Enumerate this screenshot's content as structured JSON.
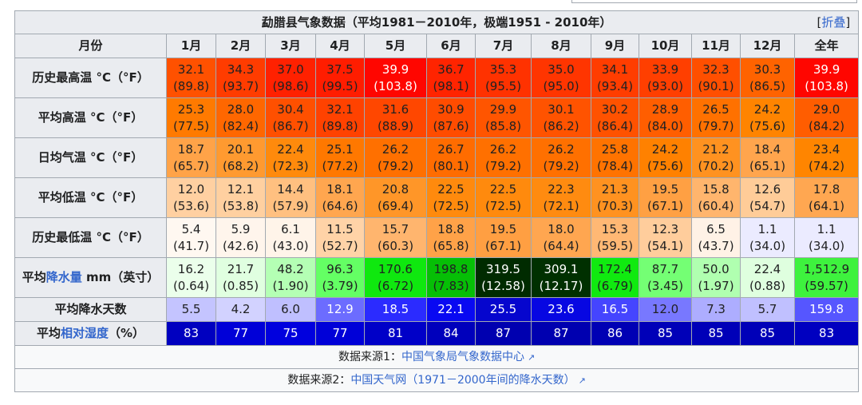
{
  "table": {
    "title": "勐腊县气象数据（平均1981－2010年，极端1951 - 2010年）",
    "collapse_toggle": {
      "bracket_open": "[",
      "label": "折叠",
      "bracket_close": "]"
    },
    "header_label": "月份",
    "months": [
      "1月",
      "2月",
      "3月",
      "4月",
      "5月",
      "6月",
      "7月",
      "8月",
      "9月",
      "10月",
      "11月",
      "12月",
      "全年"
    ],
    "rows": [
      {
        "label_parts": [
          {
            "text": "历史最高温 °C（°F）",
            "link": false
          }
        ],
        "cells": [
          {
            "c": "32.1",
            "f": "(89.8)",
            "bg": "#ff5100",
            "fg": "#202122"
          },
          {
            "c": "34.3",
            "f": "(93.7)",
            "bg": "#ff3c00",
            "fg": "#202122"
          },
          {
            "c": "37.0",
            "f": "(98.6)",
            "bg": "#ff2100",
            "fg": "#202122"
          },
          {
            "c": "37.5",
            "f": "(99.5)",
            "bg": "#ff1d00",
            "fg": "#202122"
          },
          {
            "c": "39.9",
            "f": "(103.8)",
            "bg": "#ff0600",
            "fg": "#ffffff"
          },
          {
            "c": "36.7",
            "f": "(98.1)",
            "bg": "#ff2400",
            "fg": "#202122"
          },
          {
            "c": "35.3",
            "f": "(95.5)",
            "bg": "#ff3200",
            "fg": "#202122"
          },
          {
            "c": "35.0",
            "f": "(95.0)",
            "bg": "#ff3500",
            "fg": "#202122"
          },
          {
            "c": "34.1",
            "f": "(93.4)",
            "bg": "#ff3d00",
            "fg": "#202122"
          },
          {
            "c": "33.9",
            "f": "(93.0)",
            "bg": "#ff3f00",
            "fg": "#202122"
          },
          {
            "c": "32.3",
            "f": "(90.1)",
            "bg": "#ff4f00",
            "fg": "#202122"
          },
          {
            "c": "30.3",
            "f": "(86.5)",
            "bg": "#ff6300",
            "fg": "#202122"
          },
          {
            "c": "39.9",
            "f": "(103.8)",
            "bg": "#ff0600",
            "fg": "#ffffff"
          }
        ]
      },
      {
        "label_parts": [
          {
            "text": "平均高温 °C（°F）",
            "link": false
          }
        ],
        "cells": [
          {
            "c": "25.3",
            "f": "(77.5)",
            "bg": "#ff7a00",
            "fg": "#202122"
          },
          {
            "c": "28.0",
            "f": "(82.4)",
            "bg": "#ff6700",
            "fg": "#202122"
          },
          {
            "c": "30.4",
            "f": "(86.7)",
            "bg": "#ff5000",
            "fg": "#202122"
          },
          {
            "c": "32.1",
            "f": "(89.8)",
            "bg": "#ff4200",
            "fg": "#202122"
          },
          {
            "c": "31.6",
            "f": "(88.9)",
            "bg": "#ff4700",
            "fg": "#202122"
          },
          {
            "c": "30.9",
            "f": "(87.6)",
            "bg": "#ff4c00",
            "fg": "#202122"
          },
          {
            "c": "29.9",
            "f": "(85.8)",
            "bg": "#ff5500",
            "fg": "#202122"
          },
          {
            "c": "30.1",
            "f": "(86.2)",
            "bg": "#ff5300",
            "fg": "#202122"
          },
          {
            "c": "30.2",
            "f": "(86.4)",
            "bg": "#ff5200",
            "fg": "#202122"
          },
          {
            "c": "28.9",
            "f": "(84.0)",
            "bg": "#ff5e00",
            "fg": "#202122"
          },
          {
            "c": "26.5",
            "f": "(79.7)",
            "bg": "#ff7100",
            "fg": "#202122"
          },
          {
            "c": "24.2",
            "f": "(75.6)",
            "bg": "#ff8400",
            "fg": "#202122"
          },
          {
            "c": "29.0",
            "f": "(84.2)",
            "bg": "#ff5d00",
            "fg": "#202122"
          }
        ]
      },
      {
        "label_parts": [
          {
            "text": "日均气温 °C（°F）",
            "link": false
          }
        ],
        "cells": [
          {
            "c": "18.7",
            "f": "(65.7)",
            "bg": "#ffa348",
            "fg": "#202122"
          },
          {
            "c": "20.1",
            "f": "(68.2)",
            "bg": "#ff9a30",
            "fg": "#202122"
          },
          {
            "c": "22.4",
            "f": "(72.3)",
            "bg": "#ff8a0c",
            "fg": "#202122"
          },
          {
            "c": "25.1",
            "f": "(77.2)",
            "bg": "#ff7800",
            "fg": "#202122"
          },
          {
            "c": "26.2",
            "f": "(79.2)",
            "bg": "#ff7000",
            "fg": "#202122"
          },
          {
            "c": "26.7",
            "f": "(80.1)",
            "bg": "#ff6c00",
            "fg": "#202122"
          },
          {
            "c": "26.2",
            "f": "(79.2)",
            "bg": "#ff7000",
            "fg": "#202122"
          },
          {
            "c": "26.2",
            "f": "(79.2)",
            "bg": "#ff7000",
            "fg": "#202122"
          },
          {
            "c": "25.8",
            "f": "(78.4)",
            "bg": "#ff7300",
            "fg": "#202122"
          },
          {
            "c": "24.2",
            "f": "(75.6)",
            "bg": "#ff8100",
            "fg": "#202122"
          },
          {
            "c": "21.2",
            "f": "(70.2)",
            "bg": "#ff9220",
            "fg": "#202122"
          },
          {
            "c": "18.4",
            "f": "(65.1)",
            "bg": "#ffa54d",
            "fg": "#202122"
          },
          {
            "c": "23.4",
            "f": "(74.2)",
            "bg": "#ff8500",
            "fg": "#202122"
          }
        ]
      },
      {
        "label_parts": [
          {
            "text": "平均低温 °C（°F）",
            "link": false
          }
        ],
        "cells": [
          {
            "c": "12.0",
            "f": "(53.6)",
            "bg": "#ffd0a1",
            "fg": "#202122"
          },
          {
            "c": "12.1",
            "f": "(53.8)",
            "bg": "#ffd0a0",
            "fg": "#202122"
          },
          {
            "c": "14.4",
            "f": "(57.9)",
            "bg": "#ffc080",
            "fg": "#202122"
          },
          {
            "c": "18.1",
            "f": "(64.6)",
            "bg": "#ffa64f",
            "fg": "#202122"
          },
          {
            "c": "20.8",
            "f": "(69.4)",
            "bg": "#ff9628",
            "fg": "#202122"
          },
          {
            "c": "22.5",
            "f": "(72.5)",
            "bg": "#ff8a0d",
            "fg": "#202122"
          },
          {
            "c": "22.5",
            "f": "(72.5)",
            "bg": "#ff8a0d",
            "fg": "#202122"
          },
          {
            "c": "22.3",
            "f": "(72.1)",
            "bg": "#ff8b10",
            "fg": "#202122"
          },
          {
            "c": "21.3",
            "f": "(70.3)",
            "bg": "#ff9220",
            "fg": "#202122"
          },
          {
            "c": "19.5",
            "f": "(67.1)",
            "bg": "#ffa043",
            "fg": "#202122"
          },
          {
            "c": "15.8",
            "f": "(60.4)",
            "bg": "#ffb56d",
            "fg": "#202122"
          },
          {
            "c": "12.6",
            "f": "(54.7)",
            "bg": "#ffcc98",
            "fg": "#202122"
          },
          {
            "c": "17.8",
            "f": "(64.1)",
            "bg": "#ffa751",
            "fg": "#202122"
          }
        ]
      },
      {
        "label_parts": [
          {
            "text": "历史最低温 °C（°F）",
            "link": false
          }
        ],
        "cells": [
          {
            "c": "5.4",
            "f": "(41.7)",
            "bg": "#fff8f1",
            "fg": "#202122"
          },
          {
            "c": "5.9",
            "f": "(42.6)",
            "bg": "#fff5ec",
            "fg": "#202122"
          },
          {
            "c": "6.1",
            "f": "(43.0)",
            "bg": "#fff4e9",
            "fg": "#202122"
          },
          {
            "c": "11.5",
            "f": "(52.7)",
            "bg": "#ffd3a7",
            "fg": "#202122"
          },
          {
            "c": "15.7",
            "f": "(60.3)",
            "bg": "#ffb56e",
            "fg": "#202122"
          },
          {
            "c": "18.8",
            "f": "(65.8)",
            "bg": "#ffa248",
            "fg": "#202122"
          },
          {
            "c": "19.5",
            "f": "(67.1)",
            "bg": "#ff9f42",
            "fg": "#202122"
          },
          {
            "c": "18.0",
            "f": "(64.4)",
            "bg": "#ffa650",
            "fg": "#202122"
          },
          {
            "c": "15.3",
            "f": "(59.5)",
            "bg": "#ffb874",
            "fg": "#202122"
          },
          {
            "c": "12.3",
            "f": "(54.1)",
            "bg": "#ffcd9c",
            "fg": "#202122"
          },
          {
            "c": "6.5",
            "f": "(43.7)",
            "bg": "#fff2e6",
            "fg": "#202122"
          },
          {
            "c": "1.1",
            "f": "(34.0)",
            "bg": "#ebebff",
            "fg": "#202122"
          },
          {
            "c": "1.1",
            "f": "(34.0)",
            "bg": "#ebebff",
            "fg": "#202122"
          }
        ]
      },
      {
        "label_parts": [
          {
            "text": "平均",
            "link": false
          },
          {
            "text": "降水量",
            "link": true
          },
          {
            "text": " mm（英寸）",
            "link": false
          }
        ],
        "cells": [
          {
            "c": "16.2",
            "f": "(0.64)",
            "bg": "#ebffeb",
            "fg": "#202122"
          },
          {
            "c": "21.7",
            "f": "(0.85)",
            "bg": "#e0ffe0",
            "fg": "#202122"
          },
          {
            "c": "48.2",
            "f": "(1.90)",
            "bg": "#b4ffb4",
            "fg": "#202122"
          },
          {
            "c": "96.3",
            "f": "(3.79)",
            "bg": "#64ff64",
            "fg": "#202122"
          },
          {
            "c": "170.6",
            "f": "(6.72)",
            "bg": "#0fe80f",
            "fg": "#202122"
          },
          {
            "c": "198.8",
            "f": "(7.83)",
            "bg": "#06bf06",
            "fg": "#202122"
          },
          {
            "c": "319.5",
            "f": "(12.58)",
            "bg": "#002b00",
            "fg": "#ffffff"
          },
          {
            "c": "309.1",
            "f": "(12.17)",
            "bg": "#003000",
            "fg": "#ffffff"
          },
          {
            "c": "172.4",
            "f": "(6.79)",
            "bg": "#10ea10",
            "fg": "#202122"
          },
          {
            "c": "87.7",
            "f": "(3.45)",
            "bg": "#74ff74",
            "fg": "#202122"
          },
          {
            "c": "50.0",
            "f": "(1.97)",
            "bg": "#b0ffb0",
            "fg": "#202122"
          },
          {
            "c": "22.4",
            "f": "(0.88)",
            "bg": "#dfffdf",
            "fg": "#202122"
          },
          {
            "c": "1,512.9",
            "f": "(59.57)",
            "bg": "#3ef23e",
            "fg": "#202122"
          }
        ]
      },
      {
        "label_parts": [
          {
            "text": "平均降水天数",
            "link": false
          }
        ],
        "cells": [
          {
            "c": "5.5",
            "bg": "#c4c4ff",
            "fg": "#202122"
          },
          {
            "c": "4.2",
            "bg": "#d2d2ff",
            "fg": "#202122"
          },
          {
            "c": "6.0",
            "bg": "#bfbfff",
            "fg": "#202122"
          },
          {
            "c": "12.9",
            "bg": "#6c6cff",
            "fg": "#ffffff"
          },
          {
            "c": "18.5",
            "bg": "#2b2bff",
            "fg": "#ffffff"
          },
          {
            "c": "22.1",
            "bg": "#0909f2",
            "fg": "#ffffff"
          },
          {
            "c": "25.5",
            "bg": "#0606ce",
            "fg": "#ffffff"
          },
          {
            "c": "23.6",
            "bg": "#0707e2",
            "fg": "#ffffff"
          },
          {
            "c": "16.5",
            "bg": "#4545ff",
            "fg": "#ffffff"
          },
          {
            "c": "12.0",
            "bg": "#7878ff",
            "fg": "#202122"
          },
          {
            "c": "7.3",
            "bg": "#adadff",
            "fg": "#202122"
          },
          {
            "c": "5.7",
            "bg": "#c0c0ff",
            "fg": "#202122"
          },
          {
            "c": "159.8",
            "bg": "#5656ff",
            "fg": "#ffffff"
          }
        ]
      },
      {
        "label_parts": [
          {
            "text": "平均",
            "link": false
          },
          {
            "text": "相对湿度",
            "link": true
          },
          {
            "text": "（%）",
            "link": false
          }
        ],
        "cells": [
          {
            "c": "83",
            "bg": "#0000c0",
            "fg": "#ffffff"
          },
          {
            "c": "77",
            "bg": "#0000d8",
            "fg": "#ffffff"
          },
          {
            "c": "75",
            "bg": "#0000de",
            "fg": "#ffffff"
          },
          {
            "c": "77",
            "bg": "#0000d8",
            "fg": "#ffffff"
          },
          {
            "c": "81",
            "bg": "#0000c8",
            "fg": "#ffffff"
          },
          {
            "c": "84",
            "bg": "#0000bc",
            "fg": "#ffffff"
          },
          {
            "c": "87",
            "bg": "#0000b0",
            "fg": "#ffffff"
          },
          {
            "c": "87",
            "bg": "#0000b0",
            "fg": "#ffffff"
          },
          {
            "c": "86",
            "bg": "#0000b4",
            "fg": "#ffffff"
          },
          {
            "c": "85",
            "bg": "#0000b8",
            "fg": "#ffffff"
          },
          {
            "c": "85",
            "bg": "#0000b8",
            "fg": "#ffffff"
          },
          {
            "c": "85",
            "bg": "#0000b8",
            "fg": "#ffffff"
          },
          {
            "c": "83",
            "bg": "#0000c0",
            "fg": "#ffffff"
          }
        ]
      }
    ],
    "sources": [
      {
        "prefix": "数据来源1：",
        "link_text": "中国气象局气象数据中心",
        "external_icon": "↗"
      },
      {
        "prefix": "数据来源2：",
        "link_text": "中国天气网（1971－2000年间的降水天数）",
        "external_icon": "↗"
      }
    ]
  }
}
